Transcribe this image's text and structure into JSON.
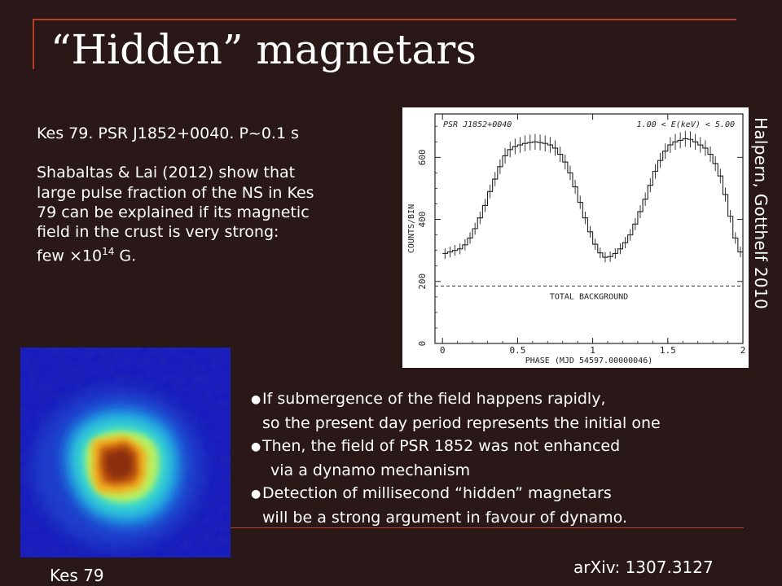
{
  "title": "“Hidden” magnetars",
  "intro": {
    "line1": "Kes 79. PSR J1852+0040. P~0.1 s",
    "para_lines": [
      "Shabaltas & Lai (2012) show that",
      "large pulse fraction of the NS in Kes",
      "79 can be explained if its magnetic",
      "field in the crust is very strong:"
    ],
    "field_prefix": "few ×10",
    "field_exp": "14",
    "field_suffix": " G."
  },
  "credit": "Halpern, Gotthelf 2010",
  "plot": {
    "source_label": "PSR J1852+0040",
    "energy_label": "1.00 < E(keV) < 5.00",
    "ylabel": "COUNTS/BIN",
    "xlabel": "PHASE (MJD 54597.00000046)",
    "background_label": "TOTAL BACKGROUND",
    "y_ticks": [
      "0",
      "200",
      "400",
      "600"
    ],
    "x_ticks": [
      "0",
      "0.5",
      "1",
      "1.5",
      "2"
    ],
    "background_level": 185,
    "ylim": [
      0,
      740
    ],
    "xlim": [
      -0.05,
      2.0
    ],
    "counts": [
      290,
      295,
      300,
      305,
      318,
      340,
      370,
      405,
      445,
      490,
      530,
      570,
      605,
      625,
      635,
      640,
      645,
      648,
      650,
      648,
      645,
      640,
      630,
      610,
      585,
      550,
      505,
      455,
      405,
      360,
      320,
      292,
      278,
      280,
      290,
      305,
      325,
      350,
      385,
      425,
      465,
      510,
      555,
      590,
      620,
      640,
      650,
      655,
      660,
      658,
      650,
      640,
      630,
      610,
      580,
      540,
      480,
      410,
      340,
      295
    ]
  },
  "image_label": "Kes 79",
  "bullets": [
    {
      "line1": "If submergence of the field happens rapidly,",
      "line2": "so the present day period represents the initial one"
    },
    {
      "line1": "Then, the field of PSR 1852 was not enhanced",
      "line2": "via a dynamo mechanism"
    },
    {
      "line1": "Detection of millisecond “hidden” magnetars",
      "line2": "will be a strong argument in favour of dynamo."
    }
  ],
  "reference": "arXiv: 1307.3127"
}
